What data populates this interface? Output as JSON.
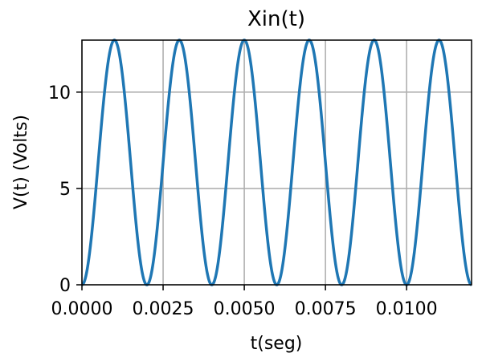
{
  "chart_data": {
    "type": "line",
    "title": "Xin(t)",
    "xlabel": "t(seg)",
    "ylabel": "V(t) (Volts)",
    "xlim": [
      0,
      0.012
    ],
    "ylim": [
      0,
      12.7
    ],
    "grid": true,
    "x_ticks": [
      "0.0000",
      "0.0025",
      "0.0050",
      "0.0075",
      "0.0100"
    ],
    "x_tick_values": [
      0,
      0.0025,
      0.005,
      0.0075,
      0.01
    ],
    "y_ticks": [
      "0",
      "5",
      "10"
    ],
    "y_tick_values": [
      0,
      5,
      10
    ],
    "series": [
      {
        "color": "#1f77b4",
        "function": "12.7 * sin(2*pi*250*t)^2",
        "amplitude": 12.7,
        "frequency_hz": 250,
        "x_start": 0,
        "x_end": 0.012
      }
    ]
  }
}
